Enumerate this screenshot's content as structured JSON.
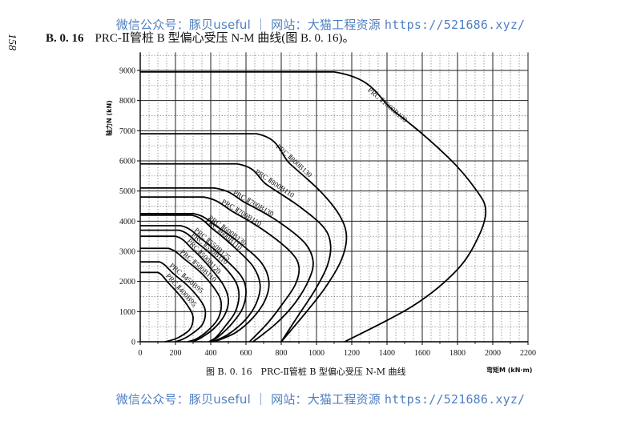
{
  "watermark": {
    "prefix": "微信公众号：豚贝useful ｜ 网站：大猫工程资源 ",
    "url": "https://521686.xyz/"
  },
  "page": {
    "number": "158",
    "section_number": "B. 0. 16",
    "section_title": "PRC-Ⅱ管桩 B 型偏心受压 N-M 曲线(图 B. 0. 16)。"
  },
  "chart_data": {
    "type": "line",
    "title": "图 B. 0. 16　PRC-Ⅱ管桩 B 型偏心受压 N-M 曲线",
    "xlabel": "弯矩M (kN·m)",
    "ylabel": "轴力N (kN)",
    "xlim": [
      0,
      2200
    ],
    "ylim": [
      0,
      9000
    ],
    "x_ticks": [
      0,
      200,
      400,
      600,
      800,
      1000,
      1200,
      1400,
      1600,
      1800,
      2000,
      2200
    ],
    "y_ticks": [
      0,
      1000,
      2000,
      3000,
      4000,
      5000,
      6000,
      7000,
      8000,
      9000
    ],
    "grid": true,
    "legend_position": "inline labels along curves",
    "series": [
      {
        "name": "PRC-Ⅱ1000B130",
        "points": [
          [
            0,
            8950
          ],
          [
            1100,
            8950
          ],
          [
            1450,
            7600
          ],
          [
            1750,
            6100
          ],
          [
            1910,
            5000
          ],
          [
            1960,
            4350
          ],
          [
            1920,
            3500
          ],
          [
            1800,
            2400
          ],
          [
            1550,
            1200
          ],
          [
            1160,
            0
          ]
        ]
      },
      {
        "name": "PRC-Ⅱ800B130",
        "points": [
          [
            0,
            6900
          ],
          [
            660,
            6900
          ],
          [
            850,
            5900
          ],
          [
            1020,
            5000
          ],
          [
            1130,
            4200
          ],
          [
            1170,
            3500
          ],
          [
            1140,
            2700
          ],
          [
            1050,
            1800
          ],
          [
            930,
            900
          ],
          [
            800,
            0
          ]
        ]
      },
      {
        "name": "PRC-Ⅱ800B110",
        "points": [
          [
            0,
            5900
          ],
          [
            550,
            5900
          ],
          [
            720,
            5200
          ],
          [
            900,
            4500
          ],
          [
            1040,
            3800
          ],
          [
            1080,
            3200
          ],
          [
            1060,
            2500
          ],
          [
            990,
            1700
          ],
          [
            900,
            900
          ],
          [
            800,
            0
          ]
        ]
      },
      {
        "name": "PRC-Ⅱ700B130",
        "points": [
          [
            0,
            5100
          ],
          [
            420,
            5100
          ],
          [
            600,
            4600
          ],
          [
            780,
            4000
          ],
          [
            930,
            3300
          ],
          [
            980,
            2700
          ],
          [
            960,
            2100
          ],
          [
            880,
            1300
          ],
          [
            770,
            600
          ],
          [
            640,
            0
          ]
        ]
      },
      {
        "name": "PRC-Ⅱ700B110",
        "points": [
          [
            0,
            4800
          ],
          [
            360,
            4800
          ],
          [
            530,
            4300
          ],
          [
            700,
            3700
          ],
          [
            850,
            3000
          ],
          [
            900,
            2500
          ],
          [
            880,
            1900
          ],
          [
            800,
            1200
          ],
          [
            720,
            600
          ],
          [
            620,
            0
          ]
        ]
      },
      {
        "name": "PRC-Ⅱ600B130",
        "points": [
          [
            0,
            4250
          ],
          [
            300,
            4250
          ],
          [
            440,
            3800
          ],
          [
            580,
            3200
          ],
          [
            690,
            2600
          ],
          [
            730,
            2000
          ],
          [
            710,
            1400
          ],
          [
            640,
            800
          ],
          [
            540,
            300
          ],
          [
            420,
            0
          ]
        ]
      },
      {
        "name": "PRC-Ⅱ600B110",
        "points": [
          [
            0,
            4200
          ],
          [
            290,
            4200
          ],
          [
            420,
            3700
          ],
          [
            540,
            3100
          ],
          [
            640,
            2500
          ],
          [
            680,
            1900
          ],
          [
            660,
            1300
          ],
          [
            600,
            750
          ],
          [
            500,
            250
          ],
          [
            410,
            0
          ]
        ]
      },
      {
        "name": "PRC-Ⅱ550B125",
        "points": [
          [
            0,
            3850
          ],
          [
            230,
            3850
          ],
          [
            350,
            3400
          ],
          [
            470,
            2800
          ],
          [
            570,
            2200
          ],
          [
            600,
            1700
          ],
          [
            580,
            1100
          ],
          [
            520,
            600
          ],
          [
            450,
            200
          ],
          [
            400,
            0
          ]
        ]
      },
      {
        "name": "PRC-Ⅱ550B110",
        "points": [
          [
            0,
            3700
          ],
          [
            220,
            3700
          ],
          [
            330,
            3250
          ],
          [
            440,
            2700
          ],
          [
            530,
            2100
          ],
          [
            560,
            1600
          ],
          [
            540,
            1000
          ],
          [
            480,
            500
          ],
          [
            430,
            150
          ],
          [
            390,
            0
          ]
        ]
      },
      {
        "name": "PRC-Ⅱ500B120",
        "points": [
          [
            0,
            3500
          ],
          [
            200,
            3500
          ],
          [
            300,
            3050
          ],
          [
            390,
            2500
          ],
          [
            470,
            1900
          ],
          [
            500,
            1400
          ],
          [
            480,
            900
          ],
          [
            420,
            450
          ],
          [
            350,
            150
          ],
          [
            300,
            0
          ]
        ]
      },
      {
        "name": "PRC-Ⅱ500B110",
        "points": [
          [
            0,
            3100
          ],
          [
            160,
            3100
          ],
          [
            260,
            2700
          ],
          [
            360,
            2200
          ],
          [
            440,
            1600
          ],
          [
            460,
            1200
          ],
          [
            440,
            750
          ],
          [
            380,
            350
          ],
          [
            320,
            100
          ],
          [
            270,
            0
          ]
        ]
      },
      {
        "name": "PRC-Ⅱ450B95",
        "points": [
          [
            0,
            2650
          ],
          [
            110,
            2650
          ],
          [
            190,
            2250
          ],
          [
            280,
            1800
          ],
          [
            350,
            1300
          ],
          [
            370,
            950
          ],
          [
            350,
            550
          ],
          [
            290,
            250
          ],
          [
            240,
            80
          ],
          [
            200,
            0
          ]
        ]
      },
      {
        "name": "PRC-Ⅱ400B95",
        "points": [
          [
            0,
            2300
          ],
          [
            100,
            2300
          ],
          [
            160,
            1950
          ],
          [
            230,
            1500
          ],
          [
            285,
            1050
          ],
          [
            300,
            750
          ],
          [
            280,
            400
          ],
          [
            220,
            150
          ],
          [
            170,
            40
          ],
          [
            140,
            0
          ]
        ]
      }
    ]
  }
}
